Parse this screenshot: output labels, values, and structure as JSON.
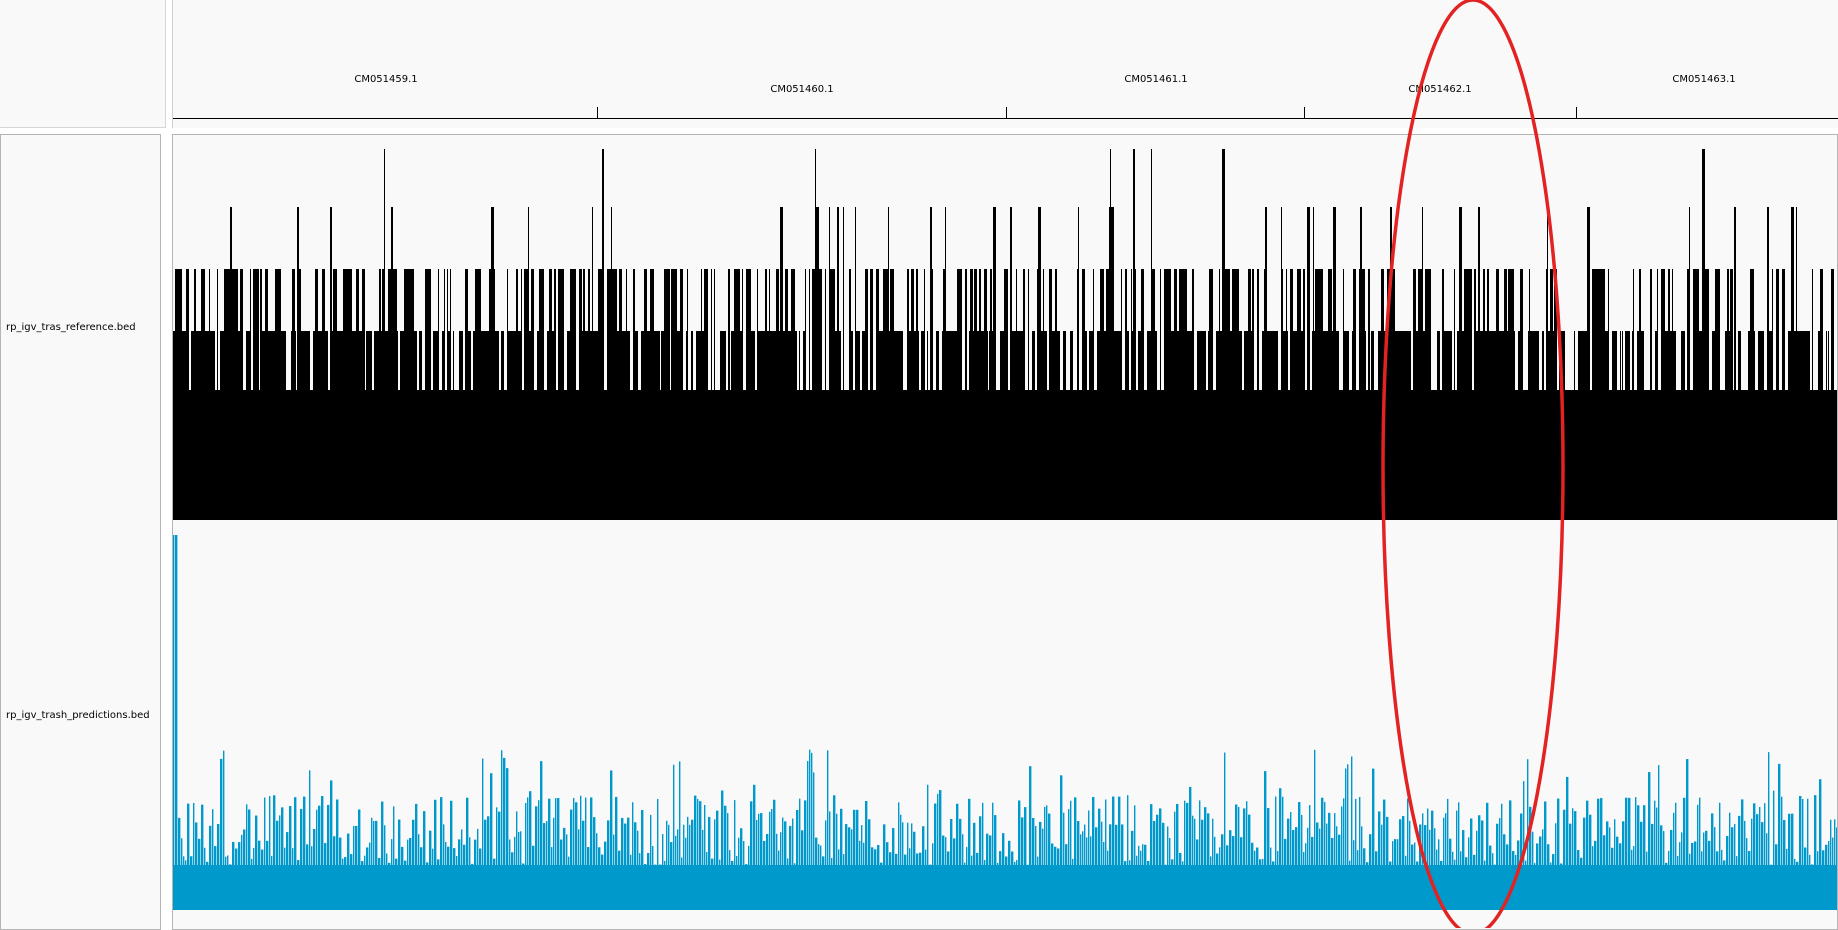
{
  "ruler": {
    "chromosomes": [
      {
        "name": "CM051459.1"
      },
      {
        "name": "CM051460.1"
      },
      {
        "name": "CM051461.1"
      },
      {
        "name": "CM051462.1"
      },
      {
        "name": "CM051463.1"
      }
    ]
  },
  "tracks": [
    {
      "name": "rp_igv_tras_reference.bed",
      "color": "#000000",
      "kind": "expanded-feature-density"
    },
    {
      "name": "rp_igv_trash_predictions.bed",
      "color": "#0099cc",
      "kind": "coverage-bars"
    }
  ],
  "annotation": {
    "shape": "ellipse",
    "color": "#e32222",
    "marks_chromosome": "CM051462.1"
  }
}
